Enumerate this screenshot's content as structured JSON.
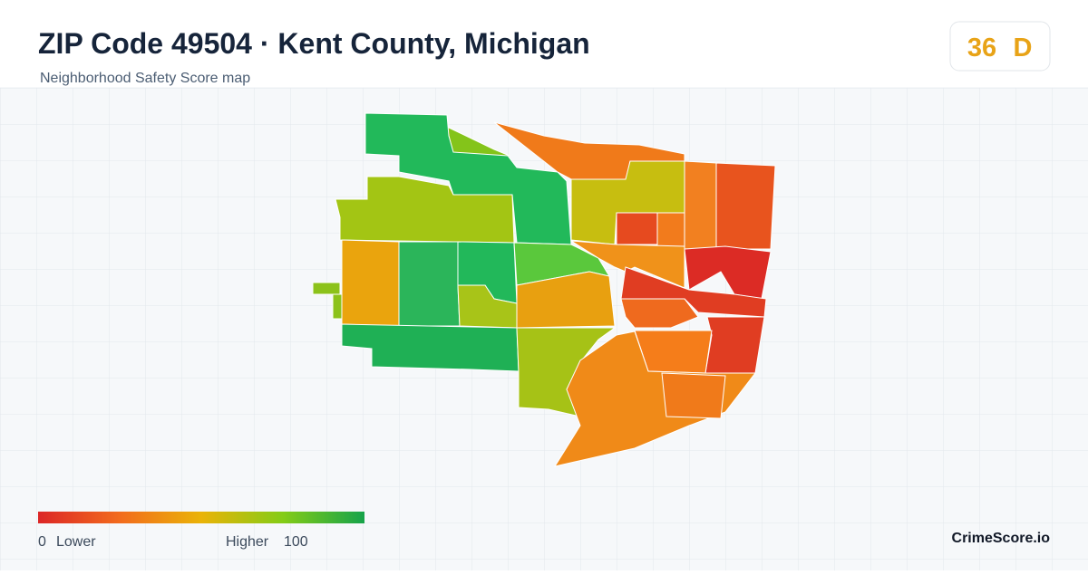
{
  "header": {
    "title": "ZIP Code 49504 · Kent County, Michigan",
    "subtitle": "Neighborhood Safety Score map"
  },
  "score": {
    "value": "36",
    "grade": "D"
  },
  "legend": {
    "min": "0",
    "min_label": "Lower",
    "max_label": "Higher",
    "max": "100"
  },
  "brand": "CrimeScore.io"
}
